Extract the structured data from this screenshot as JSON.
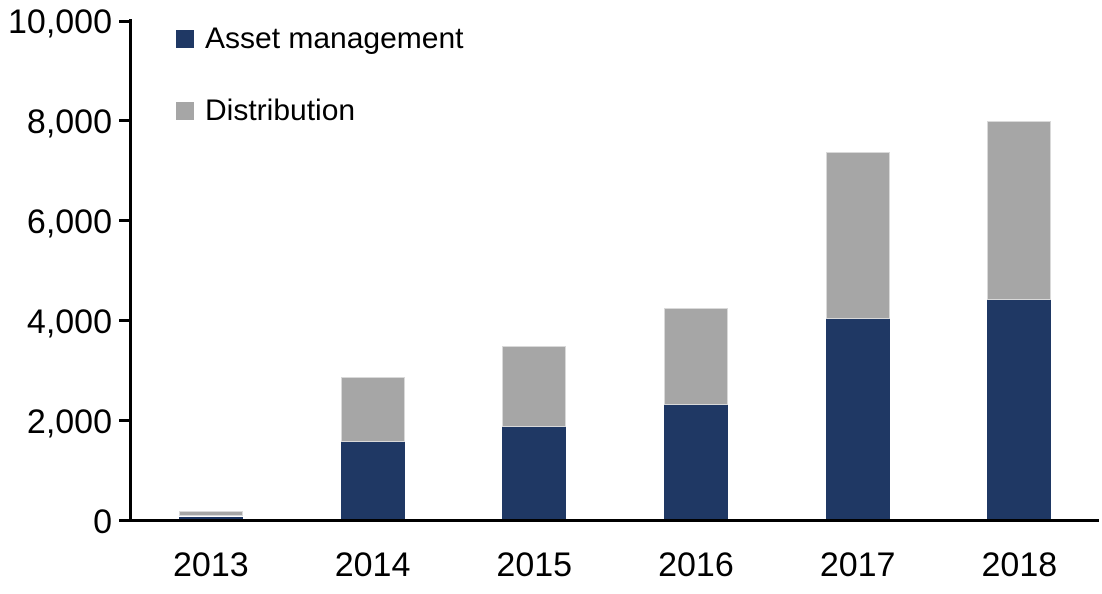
{
  "chart_data": {
    "type": "bar",
    "stacked": true,
    "title": "",
    "xlabel": "",
    "ylabel": "",
    "categories": [
      "2013",
      "2014",
      "2015",
      "2016",
      "2017",
      "2018"
    ],
    "series": [
      {
        "name": "Asset management",
        "color": "#1F3864",
        "values": [
          80,
          1570,
          1880,
          2310,
          4040,
          4420
        ]
      },
      {
        "name": "Distribution",
        "color": "#A6A6A6",
        "values": [
          120,
          1300,
          1620,
          1940,
          3340,
          3580
        ]
      }
    ],
    "totals": [
      200,
      2870,
      3500,
      4250,
      7380,
      8000
    ],
    "ylim": [
      0,
      10000
    ],
    "ytick_values": [
      0,
      2000,
      4000,
      6000,
      8000,
      10000
    ],
    "ytick_labels": [
      "0",
      "2,000",
      "4,000",
      "6,000",
      "8,000",
      "10,000"
    ],
    "grid": false,
    "legend_position": "top-left-inside"
  },
  "colors": {
    "axis": "#000000",
    "background": "#FFFFFF",
    "asset_management": "#1F3864",
    "distribution": "#A6A6A6"
  }
}
